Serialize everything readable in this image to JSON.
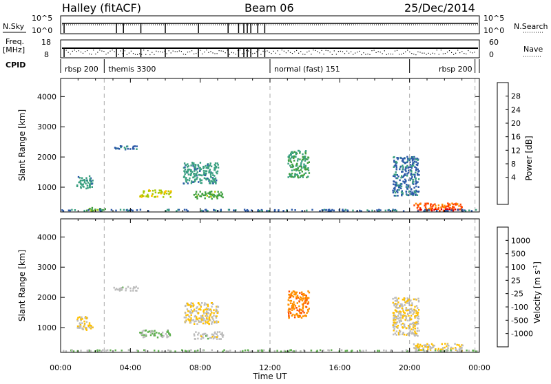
{
  "header": {
    "station": "Halley (fitACF)",
    "beam": "Beam 06",
    "date": "25/Dec/2014"
  },
  "side_labels": {
    "nsky": "N.Sky",
    "nsearch": "N.Search",
    "freq_line1": "Freq.",
    "freq_line2": "[MHz]",
    "nave": "Nave",
    "cpid": "CPID"
  },
  "noise_panel": {
    "left_ticks": [
      "10^5",
      "10^0"
    ],
    "right_ticks": [
      "10^5",
      "10^0"
    ]
  },
  "freq_panel": {
    "left_ticks": [
      "18",
      "8"
    ],
    "right_ticks": [
      "60",
      "0"
    ]
  },
  "cpid_segments": [
    {
      "label": "rbsp 200",
      "start_h": 0.0,
      "end_h": 2.5
    },
    {
      "label": "themis 3300",
      "start_h": 2.5,
      "end_h": 12.0
    },
    {
      "label": "normal (fast) 151",
      "start_h": 12.0,
      "end_h": 20.0
    },
    {
      "label": "rbsp 200",
      "start_h": 20.0,
      "end_h": 23.75
    }
  ],
  "ylabel": "Slant Range [km]",
  "xlabel": "Time UT",
  "y_ticks": [
    "4000",
    "3000",
    "2000",
    "1000"
  ],
  "x_ticks": [
    "00:00",
    "04:00",
    "08:00",
    "12:00",
    "16:00",
    "20:00",
    "00:00"
  ],
  "power_scale": {
    "label": "Power [dB]",
    "ticks": [
      "28",
      "24",
      "20",
      "16",
      "12",
      "8",
      "4"
    ],
    "colors": [
      "#e00000",
      "#ff4400",
      "#ff8c00",
      "#ffc000",
      "#a8c800",
      "#40a040",
      "#3aa080",
      "#2c5aa8",
      "#0000e8"
    ]
  },
  "velocity_scale": {
    "label": "Velocity [m s^-1]",
    "ticks": [
      "1000",
      "500",
      "100",
      "25",
      "-25",
      "-100",
      "-500",
      "-1000"
    ],
    "colors": [
      "#2040b0",
      "#3a7ab8",
      "#40a080",
      "#60b050",
      "#bcbcbc",
      "#ffc000",
      "#ff9000",
      "#ff5000",
      "#e00000"
    ]
  },
  "chart_data": {
    "type": "heatmap",
    "title": "Halley (fitACF)  Beam 06  25/Dec/2014",
    "xlabel": "Time UT",
    "ylabel": "Slant Range [km]",
    "xlim_hours": [
      0,
      24
    ],
    "ylim_km": [
      180,
      4600
    ],
    "panels": [
      {
        "name": "Power",
        "units": "dB",
        "color_range": [
          0,
          30
        ],
        "scatter_regions": [
          {
            "t": [
              0.9,
              1.8
            ],
            "r": [
              900,
              1350
            ],
            "value": 8
          },
          {
            "t": [
              1.3,
              2.6
            ],
            "r": [
              200,
              300
            ],
            "value": 12
          },
          {
            "t": [
              4.5,
              6.3
            ],
            "r": [
              650,
              900
            ],
            "value": 16
          },
          {
            "t": [
              7.0,
              9.0
            ],
            "r": [
              1100,
              1800
            ],
            "value": 8
          },
          {
            "t": [
              7.6,
              9.3
            ],
            "r": [
              600,
              850
            ],
            "value": 12
          },
          {
            "t": [
              3.0,
              4.4
            ],
            "r": [
              2200,
              2350
            ],
            "value": 6
          },
          {
            "t": [
              13.0,
              14.2
            ],
            "r": [
              1300,
              2200
            ],
            "value": 10
          },
          {
            "t": [
              19.0,
              20.5
            ],
            "r": [
              700,
              2000
            ],
            "value": 6
          },
          {
            "t": [
              20.2,
              23.0
            ],
            "r": [
              200,
              450
            ],
            "value": 24
          },
          {
            "t": [
              20.3,
              22.8
            ],
            "r": [
              200,
              260
            ],
            "value": 28
          },
          {
            "t": [
              0.0,
              24.0
            ],
            "r": [
              190,
              240
            ],
            "value": 6
          }
        ]
      },
      {
        "name": "Velocity",
        "units": "m s^-1",
        "color_range": [
          -1000,
          1000
        ],
        "scatter_regions": [
          {
            "t": [
              0.9,
              1.8
            ],
            "r": [
              900,
              1350
            ],
            "value": -100
          },
          {
            "t": [
              4.5,
              6.3
            ],
            "r": [
              650,
              900
            ],
            "value": 100
          },
          {
            "t": [
              7.0,
              9.0
            ],
            "r": [
              1100,
              1800
            ],
            "value": -100
          },
          {
            "t": [
              7.6,
              9.3
            ],
            "r": [
              600,
              850
            ],
            "value": 0
          },
          {
            "t": [
              3.0,
              4.4
            ],
            "r": [
              2200,
              2350
            ],
            "value": 0
          },
          {
            "t": [
              13.0,
              14.2
            ],
            "r": [
              1300,
              2200
            ],
            "value": -500
          },
          {
            "t": [
              19.0,
              20.5
            ],
            "r": [
              700,
              2000
            ],
            "value": -100
          },
          {
            "t": [
              20.2,
              23.0
            ],
            "r": [
              200,
              450
            ],
            "value": -100
          },
          {
            "t": [
              0.0,
              24.0
            ],
            "r": [
              190,
              240
            ],
            "value": 100
          }
        ]
      }
    ]
  }
}
